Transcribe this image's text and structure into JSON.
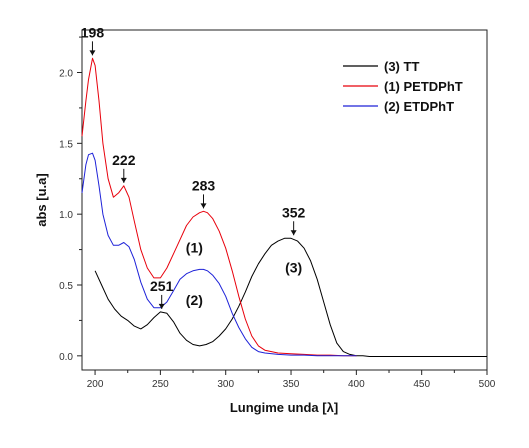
{
  "chart_data": {
    "type": "line",
    "xlabel": "Lungime unda [λ]",
    "ylabel": "abs [u.a]",
    "xlim": [
      190,
      500
    ],
    "ylim": [
      -0.1,
      2.3
    ],
    "xticks": [
      200,
      250,
      300,
      350,
      400,
      450,
      500
    ],
    "yticks": [
      0.0,
      0.5,
      1.0,
      1.5,
      2.0
    ],
    "xtick_labels": [
      "200",
      "250",
      "300",
      "350",
      "400",
      "450",
      "500"
    ],
    "ytick_labels": [
      "0.0",
      "0.5",
      "1.0",
      "1.5",
      "2.0"
    ],
    "legend_position": "top-right",
    "series": [
      {
        "name": "(3) TT",
        "color": "#000000",
        "x": [
          200,
          205,
          210,
          215,
          220,
          225,
          230,
          235,
          240,
          245,
          250,
          255,
          260,
          265,
          270,
          275,
          280,
          285,
          290,
          295,
          300,
          305,
          310,
          315,
          320,
          325,
          330,
          335,
          340,
          345,
          350,
          355,
          360,
          365,
          370,
          375,
          380,
          385,
          390,
          395,
          400,
          405,
          410,
          420,
          430,
          440,
          450,
          460,
          470,
          480,
          490,
          500
        ],
        "y": [
          0.6,
          0.5,
          0.4,
          0.33,
          0.28,
          0.25,
          0.21,
          0.19,
          0.22,
          0.27,
          0.31,
          0.3,
          0.24,
          0.16,
          0.11,
          0.08,
          0.07,
          0.08,
          0.1,
          0.14,
          0.19,
          0.26,
          0.35,
          0.45,
          0.56,
          0.65,
          0.72,
          0.78,
          0.81,
          0.83,
          0.83,
          0.81,
          0.76,
          0.67,
          0.54,
          0.38,
          0.22,
          0.09,
          0.03,
          0.01,
          0.0,
          0.0,
          -0.005,
          -0.005,
          -0.005,
          -0.005,
          -0.005,
          -0.005,
          -0.005,
          -0.005,
          -0.005,
          -0.005
        ]
      },
      {
        "name": "(1) PETDPhT",
        "color": "#e8000b",
        "x": [
          190,
          193,
          195,
          198,
          200,
          203,
          206,
          210,
          214,
          218,
          222,
          226,
          230,
          235,
          240,
          245,
          250,
          255,
          260,
          265,
          270,
          275,
          280,
          283,
          286,
          290,
          295,
          300,
          305,
          310,
          315,
          320,
          325,
          330,
          340,
          350,
          360,
          370,
          380,
          390,
          400
        ],
        "y": [
          1.55,
          1.8,
          1.95,
          2.1,
          2.05,
          1.8,
          1.5,
          1.25,
          1.12,
          1.15,
          1.2,
          1.12,
          0.95,
          0.75,
          0.62,
          0.55,
          0.55,
          0.62,
          0.72,
          0.82,
          0.92,
          0.98,
          1.01,
          1.02,
          1.01,
          0.97,
          0.88,
          0.76,
          0.6,
          0.42,
          0.26,
          0.14,
          0.07,
          0.04,
          0.02,
          0.015,
          0.01,
          0.005,
          0.005,
          0.0,
          0.0
        ]
      },
      {
        "name": "(2) ETDPhT",
        "color": "#1e22d8",
        "x": [
          190,
          193,
          195,
          198,
          200,
          203,
          206,
          210,
          214,
          218,
          222,
          226,
          230,
          235,
          240,
          245,
          250,
          255,
          260,
          265,
          270,
          275,
          280,
          283,
          286,
          290,
          295,
          300,
          305,
          310,
          315,
          320,
          325,
          330,
          340,
          350,
          360,
          370,
          380,
          390,
          400
        ],
        "y": [
          1.15,
          1.35,
          1.42,
          1.43,
          1.38,
          1.2,
          1.0,
          0.85,
          0.78,
          0.78,
          0.8,
          0.77,
          0.68,
          0.52,
          0.4,
          0.34,
          0.34,
          0.38,
          0.46,
          0.54,
          0.58,
          0.6,
          0.61,
          0.61,
          0.6,
          0.57,
          0.51,
          0.42,
          0.3,
          0.2,
          0.12,
          0.06,
          0.03,
          0.02,
          0.01,
          0.005,
          0.005,
          0.0,
          0.0,
          0.0,
          0.0
        ]
      }
    ],
    "annotations": [
      {
        "text": "198",
        "x": 198,
        "y": 2.1,
        "arrow": true
      },
      {
        "text": "222",
        "x": 222,
        "y": 1.2,
        "arrow": true
      },
      {
        "text": "283",
        "x": 283,
        "y": 1.02,
        "arrow": true
      },
      {
        "text": "352",
        "x": 352,
        "y": 0.83,
        "arrow": true
      },
      {
        "text": "251",
        "x": 251,
        "y": 0.31,
        "arrow": true
      },
      {
        "text": "(1)",
        "x": 276,
        "y": 0.73,
        "arrow": false
      },
      {
        "text": "(2)",
        "x": 276,
        "y": 0.36,
        "arrow": false
      },
      {
        "text": "(3)",
        "x": 352,
        "y": 0.59,
        "arrow": false
      }
    ]
  }
}
